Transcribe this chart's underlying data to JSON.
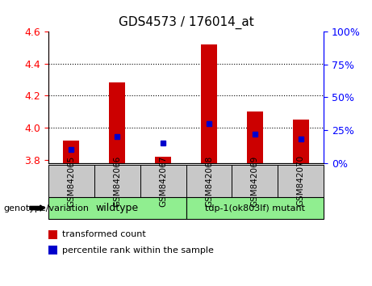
{
  "title": "GDS4573 / 176014_at",
  "samples": [
    "GSM842065",
    "GSM842066",
    "GSM842067",
    "GSM842068",
    "GSM842069",
    "GSM842070"
  ],
  "red_values": [
    3.92,
    4.28,
    3.82,
    4.52,
    4.1,
    4.05
  ],
  "blue_percentiles": [
    10,
    20,
    15,
    30,
    22,
    18
  ],
  "ylim_left": [
    3.78,
    4.6
  ],
  "ylim_right": [
    0,
    100
  ],
  "yticks_left": [
    3.8,
    4.0,
    4.2,
    4.4,
    4.6
  ],
  "yticks_right": [
    0,
    25,
    50,
    75,
    100
  ],
  "bar_bottom": 3.78,
  "groups": [
    {
      "label": "wildtype",
      "indices": [
        0,
        1,
        2
      ],
      "color": "#90EE90"
    },
    {
      "label": "tdp-1(ok803lf) mutant",
      "indices": [
        3,
        4,
        5
      ],
      "color": "#90EE90"
    }
  ],
  "genotype_label": "genotype/variation",
  "legend_items": [
    {
      "label": "transformed count",
      "color": "#CC0000"
    },
    {
      "label": "percentile rank within the sample",
      "color": "#0000CC"
    }
  ],
  "red_color": "#CC0000",
  "blue_color": "#0000CC",
  "title_fontsize": 11,
  "tick_fontsize": 9,
  "sample_box_color": "#C8C8C8",
  "grid_lines": [
    4.0,
    4.2,
    4.4
  ]
}
